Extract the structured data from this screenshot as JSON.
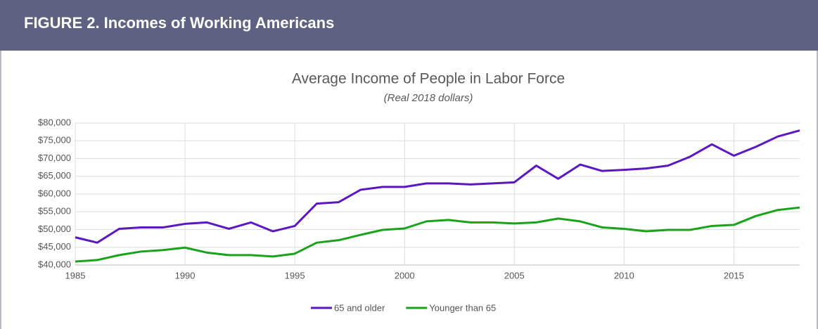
{
  "header": {
    "title": "FIGURE 2. Incomes of Working Americans"
  },
  "chart_data": {
    "type": "line",
    "title": "Average Income of People in Labor Force",
    "subtitle": "(Real 2018 dollars)",
    "x": [
      1985,
      1986,
      1987,
      1988,
      1989,
      1990,
      1991,
      1992,
      1993,
      1994,
      1995,
      1996,
      1997,
      1998,
      1999,
      2000,
      2001,
      2002,
      2003,
      2004,
      2005,
      2006,
      2007,
      2008,
      2009,
      2010,
      2011,
      2012,
      2013,
      2014,
      2015,
      2016,
      2017,
      2018
    ],
    "series": [
      {
        "name": "65 and older",
        "color": "#5a17c2",
        "values": [
          47800,
          46300,
          50200,
          50600,
          50600,
          51600,
          52000,
          50200,
          52000,
          49500,
          51000,
          57300,
          57700,
          61200,
          62000,
          62000,
          63000,
          63000,
          62700,
          63000,
          63300,
          68000,
          64300,
          68300,
          66500,
          66800,
          67200,
          68000,
          70500,
          74000,
          70800,
          73300,
          76200,
          77900
        ]
      },
      {
        "name": "Younger than 65",
        "color": "#1aa31a",
        "values": [
          41000,
          41400,
          42800,
          43800,
          44200,
          44900,
          43500,
          42800,
          42800,
          42400,
          43200,
          46300,
          47000,
          48500,
          49900,
          50300,
          52300,
          52700,
          52000,
          52000,
          51700,
          52000,
          53100,
          52300,
          50600,
          50200,
          49500,
          49900,
          49900,
          51000,
          51300,
          53800,
          55500,
          56200
        ]
      }
    ],
    "xlim": [
      1985,
      2018
    ],
    "xticks": [
      1985,
      1990,
      1995,
      2000,
      2005,
      2010,
      2015
    ],
    "ylim": [
      40000,
      80000
    ],
    "yticks": [
      {
        "value": 40000,
        "label": "$40,000"
      },
      {
        "value": 45000,
        "label": "$45,000"
      },
      {
        "value": 50000,
        "label": "$50,000"
      },
      {
        "value": 55000,
        "label": "$55,000"
      },
      {
        "value": 60000,
        "label": "$60,000"
      },
      {
        "value": 65000,
        "label": "$65,000"
      },
      {
        "value": 70000,
        "label": "$70,000"
      },
      {
        "value": 75000,
        "label": "$75,000"
      },
      {
        "value": 80000,
        "label": "$80,000"
      }
    ],
    "grid": true,
    "legend": "bottom"
  }
}
